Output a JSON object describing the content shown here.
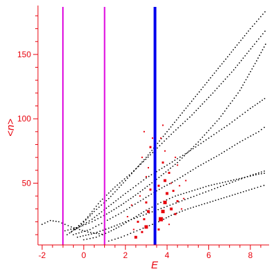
{
  "chart_data": {
    "type": "scatter",
    "title": "",
    "xlabel": "E",
    "ylabel": "<n>",
    "xlim": [
      -2.2,
      8.9
    ],
    "ylim": [
      2,
      188
    ],
    "grid": false,
    "legend": "none",
    "x_ticks": [
      {
        "value": -2,
        "label": "-2"
      },
      {
        "value": 0,
        "label": "0"
      },
      {
        "value": 2,
        "label": "2"
      },
      {
        "value": 4,
        "label": "4"
      },
      {
        "value": 6,
        "label": "6"
      },
      {
        "value": 8,
        "label": "8"
      }
    ],
    "y_ticks": [
      {
        "value": 50,
        "label": "50"
      },
      {
        "value": 100,
        "label": "100"
      },
      {
        "value": 150,
        "label": "150"
      }
    ],
    "vertical_lines": [
      {
        "x": -1.0,
        "color": "#dd00dd",
        "width": 2
      },
      {
        "x": 1.0,
        "color": "#dd00dd",
        "width": 2
      },
      {
        "x": 3.42,
        "color": "#0000ee",
        "width": 4
      }
    ],
    "series": [
      {
        "color": "#000000",
        "curves": [
          {
            "x": [
              -2.0,
              -1.6,
              -1.2,
              -0.9,
              -0.6,
              -0.2,
              0.2,
              0.6,
              1.0
            ],
            "y": [
              18,
              21,
              20,
              18,
              16,
              14,
              12,
              11,
              10
            ]
          },
          {
            "x": [
              -0.9,
              -0.2,
              0.4,
              1.1,
              1.8,
              2.6,
              3.5,
              4.5,
              5.5,
              6.5,
              7.5,
              8.3,
              8.8
            ],
            "y": [
              13,
              16,
              20,
              26,
              33,
              42,
              53,
              66,
              82,
              100,
              122,
              145,
              160
            ]
          },
          {
            "x": [
              -0.8,
              -0.1,
              0.5,
              1.2,
              2.0,
              3.0,
              4.0,
              5.0,
              6.0,
              7.0,
              8.0,
              8.8
            ],
            "y": [
              10,
              18,
              28,
              38,
              52,
              70,
              90,
              110,
              130,
              150,
              170,
              185
            ]
          },
          {
            "x": [
              -0.6,
              0.1,
              0.8,
              1.5,
              2.3,
              3.2,
              4.2,
              5.2,
              6.2,
              7.2,
              8.2,
              8.8
            ],
            "y": [
              12,
              22,
              36,
              47,
              58,
              72,
              88,
              103,
              120,
              138,
              158,
              170
            ]
          },
          {
            "x": [
              -0.4,
              0.4,
              1.2,
              2.0,
              3.0,
              4.0,
              5.0,
              6.0,
              7.0,
              8.0,
              8.8
            ],
            "y": [
              14,
              22,
              32,
              42,
              54,
              64,
              74,
              85,
              96,
              108,
              117
            ]
          },
          {
            "x": [
              -0.5,
              0.3,
              1.0,
              1.8,
              2.6,
              3.5,
              4.5,
              5.5,
              6.5,
              7.5,
              8.4,
              8.8
            ],
            "y": [
              10,
              14,
              20,
              27,
              35,
              44,
              53,
              63,
              72,
              82,
              90,
              95
            ]
          },
          {
            "x": [
              -0.3,
              0.5,
              1.2,
              2.0,
              3.0,
              4.0,
              5.0,
              6.0,
              7.0,
              8.0,
              8.8
            ],
            "y": [
              8,
              11,
              15,
              20,
              26,
              32,
              38,
              44,
              50,
              56,
              60
            ]
          },
          {
            "x": [
              0.0,
              0.6,
              1.2,
              1.8,
              2.4,
              3.0,
              3.7,
              4.4,
              5.2,
              6.0,
              6.8,
              7.6,
              8.4,
              8.8
            ],
            "y": [
              6,
              8,
              12,
              17,
              23,
              29,
              35,
              40,
              44,
              48,
              51,
              54,
              57,
              58
            ]
          },
          {
            "x": [
              1.2,
              1.8,
              2.4,
              3.0,
              3.6,
              4.2,
              5.0,
              5.8,
              6.6,
              7.4,
              8.2,
              8.8
            ],
            "y": [
              5,
              8,
              12,
              16,
              20,
              25,
              30,
              34,
              38,
              42,
              46,
              49
            ]
          }
        ]
      },
      {
        "color": "#e8000b",
        "points": [
          [
            2.5,
            8,
            4
          ],
          [
            2.8,
            12,
            3
          ],
          [
            3.0,
            16,
            5
          ],
          [
            2.9,
            22,
            3
          ],
          [
            3.1,
            28,
            4
          ],
          [
            3.0,
            35,
            3
          ],
          [
            2.7,
            40,
            2
          ],
          [
            3.2,
            45,
            3
          ],
          [
            3.0,
            55,
            2
          ],
          [
            3.1,
            62,
            2
          ],
          [
            2.8,
            70,
            2
          ],
          [
            3.2,
            78,
            3
          ],
          [
            3.3,
            85,
            2
          ],
          [
            2.6,
            20,
            3
          ],
          [
            2.4,
            14,
            2
          ],
          [
            2.1,
            24,
            2
          ],
          [
            3.7,
            22,
            6
          ],
          [
            3.8,
            28,
            5
          ],
          [
            3.9,
            35,
            5
          ],
          [
            4.0,
            42,
            4
          ],
          [
            3.6,
            48,
            3
          ],
          [
            3.9,
            52,
            4
          ],
          [
            4.1,
            58,
            3
          ],
          [
            3.8,
            66,
            3
          ],
          [
            3.9,
            75,
            2
          ],
          [
            3.7,
            85,
            2
          ],
          [
            4.2,
            30,
            4
          ],
          [
            4.4,
            26,
            3
          ],
          [
            4.5,
            36,
            3
          ],
          [
            4.3,
            44,
            3
          ],
          [
            4.6,
            48,
            2
          ],
          [
            4.8,
            38,
            2
          ],
          [
            4.7,
            30,
            2
          ],
          [
            4.5,
            64,
            2
          ],
          [
            4.4,
            70,
            2
          ],
          [
            4.2,
            50,
            2
          ],
          [
            3.8,
            95,
            2
          ],
          [
            2.9,
            90,
            2
          ],
          [
            4.9,
            52,
            2
          ],
          [
            4.1,
            18,
            2
          ],
          [
            3.6,
            14,
            3
          ],
          [
            2.3,
            33,
            2
          ]
        ]
      }
    ]
  }
}
